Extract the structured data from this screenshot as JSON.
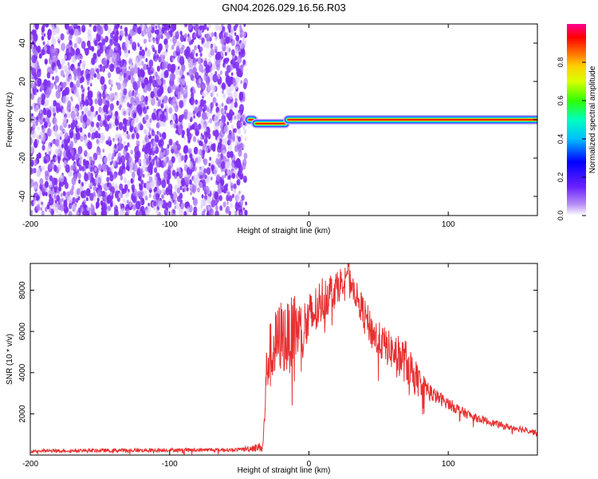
{
  "figure_title": "GN04.2026.029.16.56.R03",
  "colors": {
    "snr_line": "#e83030",
    "noise_purple": "#7f2ff0",
    "axis": "#000000"
  },
  "colorbar": {
    "label": "Normalized spectral amplitude",
    "ticks": [
      "0.0",
      "0.2",
      "0.4",
      "0.6",
      "0.8"
    ],
    "tick_values": [
      0.0,
      0.2,
      0.4,
      0.6,
      0.8
    ],
    "range": [
      0.0,
      1.0
    ],
    "colormap": "rainbow (purple → blue → cyan → green → yellow → red → magenta)"
  },
  "chart_data": [
    {
      "type": "heatmap",
      "title": "GN04.2026.029.16.56.R03",
      "xlabel": "Height of straight line (km)",
      "ylabel": "Frequency (Hz)",
      "xlim": [
        -200,
        164
      ],
      "ylim": [
        -50,
        50
      ],
      "xticks": [
        "-200",
        "-100",
        "0",
        "100"
      ],
      "xtick_values": [
        -200,
        -100,
        0,
        100
      ],
      "yticks": [
        "-40",
        "-20",
        "0",
        "20",
        "40"
      ],
      "ytick_values": [
        -40,
        -20,
        0,
        20,
        40
      ],
      "noise_region_x": [
        -200,
        -45
      ],
      "ridge_segments": [
        {
          "x": [
            -43,
            -40
          ],
          "frequency": 0
        },
        {
          "x": [
            -38,
            -17
          ],
          "frequency": -2
        },
        {
          "x": [
            -15,
            164
          ],
          "frequency": 0
        }
      ]
    },
    {
      "type": "line",
      "xlabel": "Height of straight line (km)",
      "ylabel": "SNR (10 * v/v)",
      "xlim": [
        -200,
        164
      ],
      "ylim": [
        0,
        9300
      ],
      "xticks": [
        "-200",
        "-100",
        "0",
        "100"
      ],
      "xtick_values": [
        -200,
        -100,
        0,
        100
      ],
      "yticks": [
        "2000",
        "4000",
        "6000",
        "8000"
      ],
      "ytick_values": [
        2000,
        4000,
        6000,
        8000
      ],
      "x": [
        -200,
        -150,
        -100,
        -50,
        -33,
        -30,
        -25,
        -20,
        -15,
        -10,
        -5,
        0,
        5,
        10,
        15,
        20,
        25,
        28,
        30,
        35,
        40,
        45,
        50,
        55,
        60,
        65,
        70,
        75,
        80,
        90,
        100,
        110,
        120,
        130,
        140,
        150,
        160,
        164
      ],
      "values": [
        200,
        220,
        240,
        260,
        400,
        4500,
        5200,
        5800,
        5600,
        6200,
        6000,
        6500,
        7000,
        7600,
        7900,
        8100,
        8600,
        9000,
        8400,
        7600,
        6800,
        6000,
        5600,
        5300,
        5000,
        4800,
        4500,
        4000,
        3500,
        2900,
        2500,
        2100,
        1800,
        1600,
        1400,
        1300,
        1150,
        1050
      ],
      "spread": [
        80,
        90,
        90,
        90,
        250,
        1600,
        1700,
        1800,
        1800,
        1700,
        1500,
        1400,
        1300,
        1200,
        1000,
        900,
        700,
        500,
        600,
        700,
        800,
        900,
        900,
        900,
        900,
        1000,
        1100,
        900,
        600,
        350,
        300,
        250,
        200,
        180,
        160,
        160,
        150,
        150
      ]
    }
  ]
}
